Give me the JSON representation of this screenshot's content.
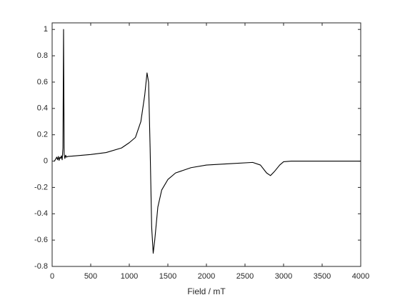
{
  "chart_data": {
    "type": "line",
    "x_label": "Field / mT",
    "color": "#000000",
    "x": [
      30,
      60,
      70,
      80,
      90,
      100,
      110,
      120,
      130,
      140,
      148,
      156,
      165,
      175,
      185,
      200,
      300,
      500,
      700,
      900,
      1000,
      1080,
      1150,
      1200,
      1230,
      1250,
      1270,
      1290,
      1310,
      1330,
      1370,
      1420,
      1500,
      1600,
      1800,
      2000,
      2300,
      2600,
      2700,
      2780,
      2830,
      2880,
      2950,
      3000,
      3100,
      4000
    ],
    "values": [
      0.0,
      0.03,
      0.01,
      0.035,
      0.005,
      0.03,
      0.02,
      0.04,
      0.01,
      0.1,
      1.0,
      0.05,
      0.02,
      0.045,
      0.03,
      0.035,
      0.04,
      0.05,
      0.065,
      0.1,
      0.14,
      0.18,
      0.3,
      0.5,
      0.67,
      0.6,
      0.1,
      -0.5,
      -0.7,
      -0.6,
      -0.35,
      -0.22,
      -0.14,
      -0.09,
      -0.05,
      -0.03,
      -0.02,
      -0.01,
      -0.03,
      -0.09,
      -0.11,
      -0.08,
      -0.03,
      -0.005,
      0,
      0
    ],
    "xlim": [
      0,
      4000
    ],
    "xticks": [
      0,
      500,
      1000,
      1500,
      2000,
      2500,
      3000,
      3500,
      4000
    ],
    "ylim": [
      -0.8,
      1.05
    ],
    "yticks": [
      -0.8,
      -0.6,
      -0.4,
      -0.2,
      0,
      0.2,
      0.4,
      0.6,
      0.8,
      1
    ]
  }
}
